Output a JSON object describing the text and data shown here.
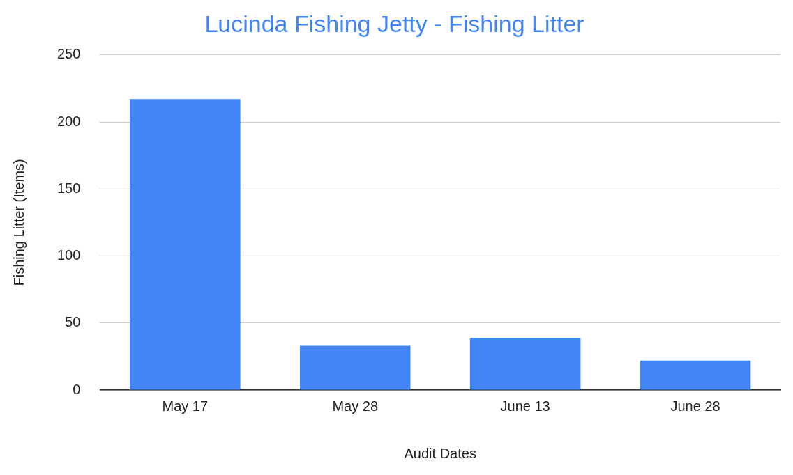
{
  "chart_data": {
    "type": "bar",
    "title": "Lucinda Fishing Jetty - Fishing Litter",
    "xlabel": "Audit Dates",
    "ylabel": "Fishing Litter (Items)",
    "categories": [
      "May 17",
      "May 28",
      "June 13",
      "June 28"
    ],
    "values": [
      217,
      33,
      39,
      22
    ],
    "color": "#4285f4",
    "ylim": [
      0,
      250
    ],
    "yticks": [
      0,
      50,
      100,
      150,
      200,
      250
    ],
    "grid": "y",
    "legend": false
  }
}
